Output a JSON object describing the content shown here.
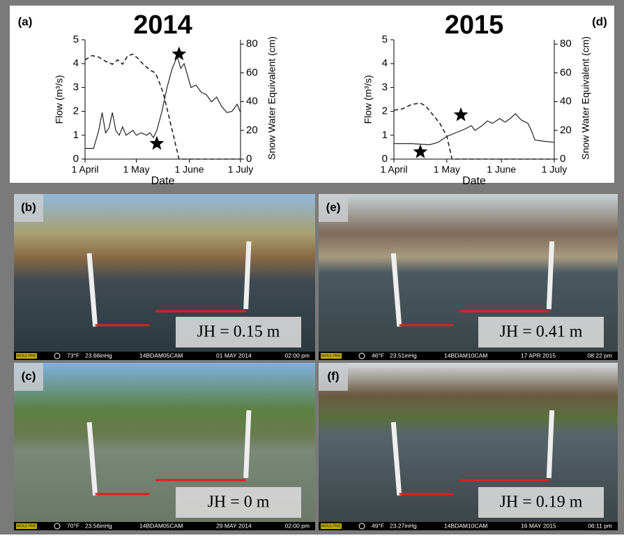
{
  "chart_data": [
    {
      "type": "line",
      "title": "2014",
      "panel_label": "(a)",
      "x_label": "Date",
      "y_label": "Flow (m³/s)",
      "y2_label": "Snow Water Equivalent (cm)",
      "xlim": [
        0,
        91
      ],
      "xticks": [
        {
          "value": 0,
          "label": "1 April"
        },
        {
          "value": 30,
          "label": "1 May"
        },
        {
          "value": 61,
          "label": "1 June"
        },
        {
          "value": 91,
          "label": "1 July"
        }
      ],
      "ylim": [
        0,
        5
      ],
      "yticks": [
        0,
        1,
        2,
        3,
        4,
        5
      ],
      "y2lim": [
        0,
        83
      ],
      "y2ticks": [
        0,
        20,
        40,
        60,
        80
      ],
      "series": [
        {
          "color": "#222",
          "x": [
            0,
            5,
            8,
            10,
            12,
            14,
            16,
            18,
            20,
            22,
            24,
            26,
            28,
            30,
            33,
            36,
            38,
            40,
            42,
            45,
            48,
            51,
            54,
            56,
            58,
            60,
            62,
            65,
            68,
            71,
            74,
            77,
            80,
            83,
            86,
            89,
            91
          ],
          "values": [
            0.45,
            0.45,
            1.2,
            1.95,
            1.1,
            1.3,
            1.95,
            1.2,
            1.0,
            1.35,
            1.0,
            1.1,
            1.2,
            1.0,
            1.1,
            1.0,
            1.1,
            0.9,
            1.2,
            2.0,
            3.0,
            3.8,
            4.3,
            3.8,
            4.0,
            3.5,
            3.0,
            3.1,
            2.8,
            2.7,
            2.4,
            2.6,
            2.2,
            1.95,
            2.0,
            2.3,
            1.95
          ]
        },
        {
          "color": "#222",
          "dashed": true,
          "axis": "y2",
          "x": [
            0,
            4,
            8,
            12,
            16,
            19,
            22,
            25,
            28,
            31,
            34,
            38,
            41,
            43,
            46,
            49,
            52,
            55,
            60,
            91
          ],
          "values": [
            69,
            72,
            71,
            68,
            66,
            69,
            66,
            72,
            73,
            70,
            66,
            62,
            60,
            55,
            45,
            30,
            15,
            0,
            0,
            0
          ]
        }
      ],
      "stars": [
        {
          "x": 42,
          "y": 0.65
        },
        {
          "x": 55,
          "y": 4.4
        }
      ]
    },
    {
      "type": "line",
      "title": "2015",
      "panel_label": "(d)",
      "x_label": "Date",
      "y_label": "Flow (m³/s)",
      "y2_label": "Snow Water Equivalent (cm)",
      "xlim": [
        0,
        91
      ],
      "xticks": [
        {
          "value": 0,
          "label": "1 April"
        },
        {
          "value": 30,
          "label": "1 May"
        },
        {
          "value": 61,
          "label": "1 June"
        },
        {
          "value": 91,
          "label": "1 July"
        }
      ],
      "ylim": [
        0,
        5
      ],
      "yticks": [
        0,
        1,
        2,
        3,
        4,
        5
      ],
      "y2lim": [
        0,
        83
      ],
      "y2ticks": [
        0,
        20,
        40,
        60,
        80
      ],
      "series": [
        {
          "color": "#222",
          "x": [
            0,
            10,
            20,
            25,
            30,
            35,
            40,
            44,
            46,
            50,
            53,
            56,
            60,
            63,
            66,
            69,
            72,
            76,
            78,
            80,
            85,
            91
          ],
          "values": [
            0.65,
            0.65,
            0.6,
            0.7,
            0.95,
            1.1,
            1.25,
            1.4,
            1.2,
            1.4,
            1.6,
            1.5,
            1.7,
            1.55,
            1.7,
            1.9,
            1.65,
            1.5,
            1.2,
            0.8,
            0.75,
            0.7
          ]
        },
        {
          "color": "#222",
          "dashed": true,
          "axis": "y2",
          "x": [
            0,
            5,
            10,
            15,
            18,
            22,
            26,
            30,
            33,
            91
          ],
          "values": [
            34,
            35,
            38,
            39,
            37,
            31,
            25,
            16,
            0,
            0
          ]
        }
      ],
      "stars": [
        {
          "x": 15,
          "y": 0.3
        },
        {
          "x": 38,
          "y": 1.85
        }
      ]
    }
  ],
  "photos": [
    {
      "label": "(b)",
      "jh": "JH = 0.15 m",
      "brand": "MOULTRIE",
      "temp": "73°F",
      "pressure": "23.66inHg",
      "camera": "14BDAM05CAM",
      "date": "01 MAY 2014",
      "time": "02:00 pm"
    },
    {
      "label": "(e)",
      "jh": "JH = 0.41 m",
      "brand": "MOULTRIE",
      "temp": "46°F",
      "pressure": "23.51inHg",
      "camera": "14BDAM10CAM",
      "date": "17 APR 2015",
      "time": "08:22 pm"
    },
    {
      "label": "(c)",
      "jh": "JH = 0 m",
      "brand": "MOULTRIE",
      "temp": "70°F",
      "pressure": "23.56inHg",
      "camera": "14BDAM05CAM",
      "date": "29 MAY 2014",
      "time": "02:00 pm"
    },
    {
      "label": "(f)",
      "jh": "JH = 0.19 m",
      "brand": "MOULTRIE",
      "temp": "49°F",
      "pressure": "23.27inHg",
      "camera": "14BDAM10CAM",
      "date": "16 MAY 2015",
      "time": "06:11 pm"
    }
  ]
}
